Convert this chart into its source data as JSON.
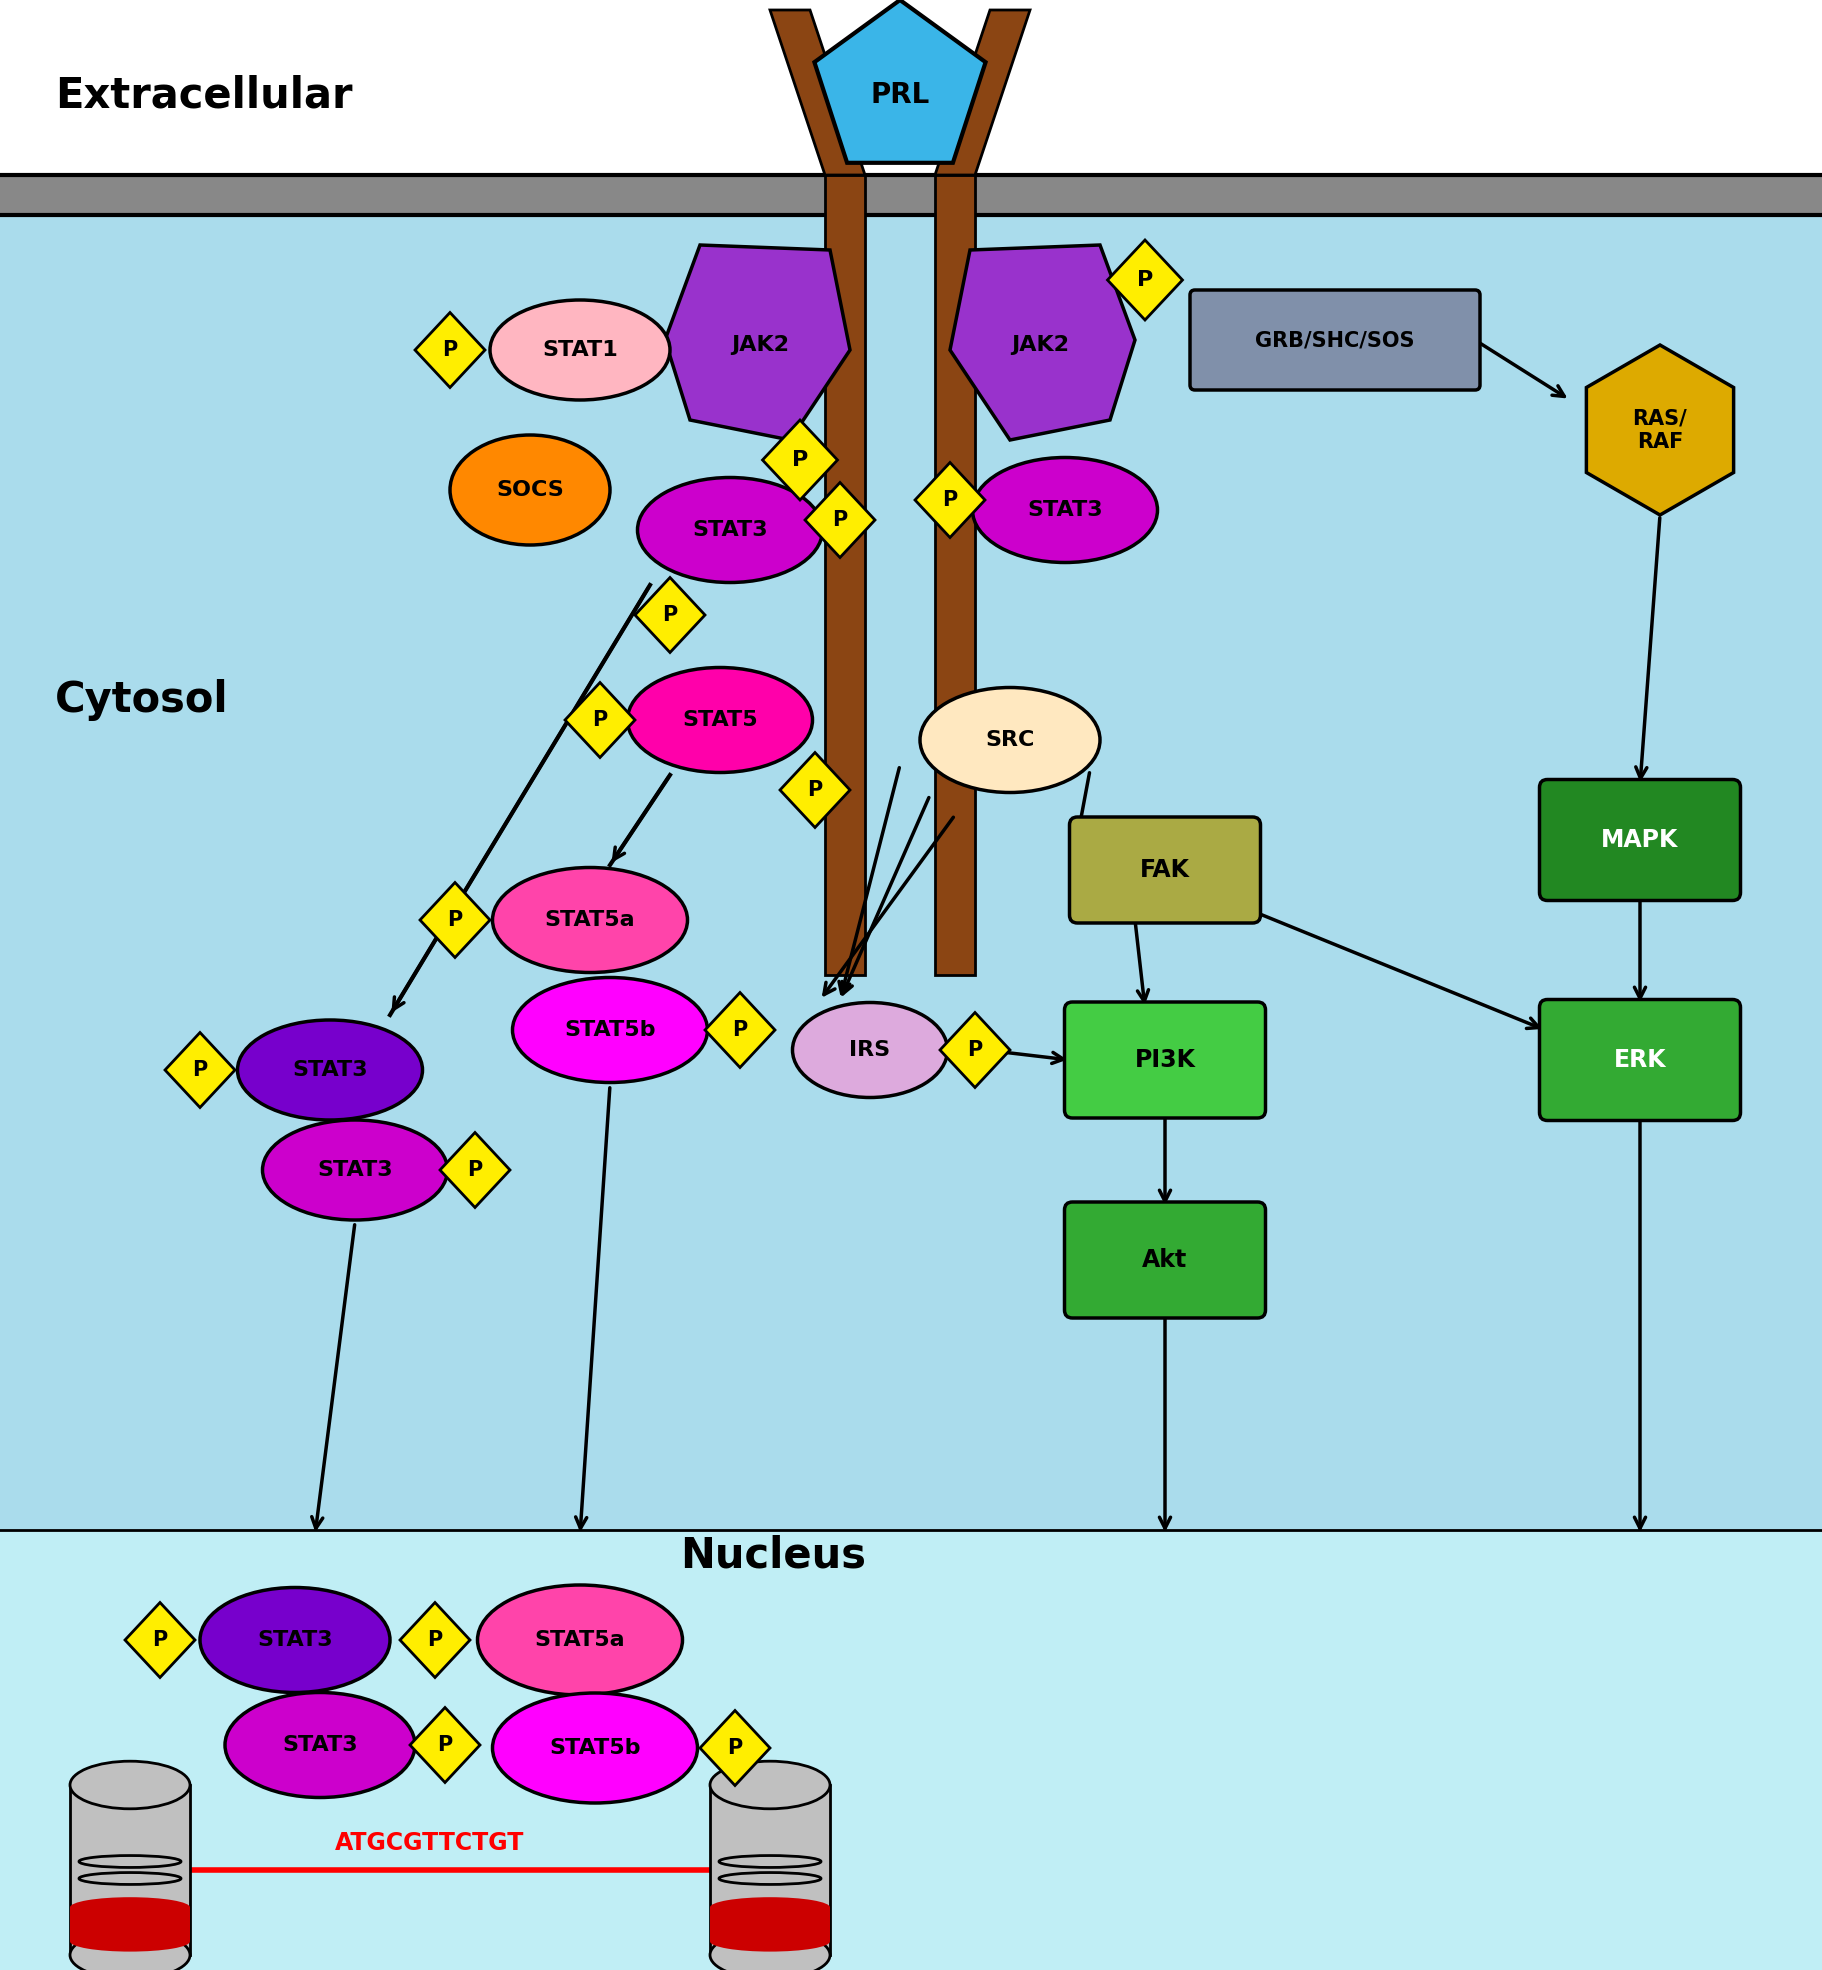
{
  "bg_extracellular": "#ffffff",
  "bg_membrane": "#888888",
  "bg_cytosol": "#aadcec",
  "bg_nucleus": "#c0eef5",
  "color_prl": "#3ab5e8",
  "color_jak2": "#9932cc",
  "color_stat1": "#ffb6c1",
  "color_socs": "#ff8800",
  "color_stat3_magenta": "#cc00cc",
  "color_stat3_purple": "#7700cc",
  "color_stat5_hot": "#ff00aa",
  "color_stat5a": "#ff44aa",
  "color_stat5b": "#ff00ff",
  "color_p": "#ffee00",
  "color_grb": "#8090aa",
  "color_ras": "#ddaa00",
  "color_src": "#ffe8c0",
  "color_fak": "#aaaa44",
  "color_pi3k": "#44cc44",
  "color_akt": "#33aa33",
  "color_erk": "#33aa33",
  "color_mapk": "#228822",
  "color_irs": "#ddaadd",
  "color_receptor": "#8b4513",
  "extracellular_label": "Extracellular",
  "cytosol_label": "Cytosol",
  "nucleus_label": "Nucleus",
  "dna_text": "ATGCGTTCTGT"
}
